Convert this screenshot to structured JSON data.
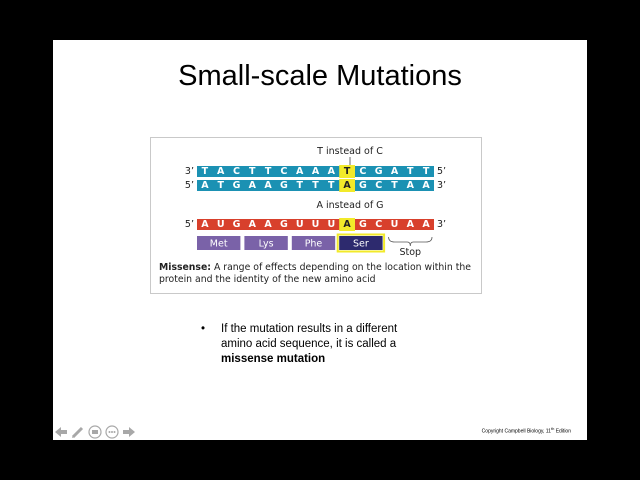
{
  "slide": {
    "title": "Small-scale Mutations",
    "bullet_symbol": "•",
    "bullet_line1": "If the mutation results in a different",
    "bullet_line2": "amino acid sequence, it is called a",
    "bullet_line3": "missense mutation",
    "copyright_text": "Copyright Campbell Biology, 11",
    "copyright_sup": "th",
    "copyright_suffix": " Edition"
  },
  "figure": {
    "label_top": "T instead of C",
    "label_mid": "A instead of G",
    "dna_top": {
      "left": "3’",
      "right": "5’",
      "bases": [
        "T",
        "A",
        "C",
        "T",
        "T",
        "C",
        "A",
        "A",
        "A",
        "T",
        "C",
        "G",
        "A",
        "T",
        "T"
      ]
    },
    "dna_bottom": {
      "left": "5’",
      "right": "3’",
      "bases": [
        "A",
        "T",
        "G",
        "A",
        "A",
        "G",
        "T",
        "T",
        "T",
        "A",
        "G",
        "C",
        "T",
        "A",
        "A"
      ]
    },
    "mrna": {
      "left": "5’",
      "right": "3’",
      "bases": [
        "A",
        "U",
        "G",
        "A",
        "A",
        "G",
        "U",
        "U",
        "U",
        "A",
        "G",
        "C",
        "U",
        "A",
        "A"
      ]
    },
    "highlight_index": 9,
    "amino_acids": [
      "Met",
      "Lys",
      "Phe",
      "Ser"
    ],
    "stop_label": "Stop",
    "caption_bold": "Missense:",
    "caption_line1": " A range of effects depending on the location within the",
    "caption_line2": "protein and the identity of the new amino acid",
    "colors": {
      "dna": "#1b91b3",
      "mrna": "#d8402c",
      "amino": "#7a62a8",
      "highlight": "#f2ea2a",
      "ser": "#2d2a6e"
    }
  },
  "toolbar": {
    "buttons": [
      "prev-arrow-icon",
      "pen-icon",
      "slides-icon",
      "more-icon",
      "next-arrow-icon"
    ]
  }
}
